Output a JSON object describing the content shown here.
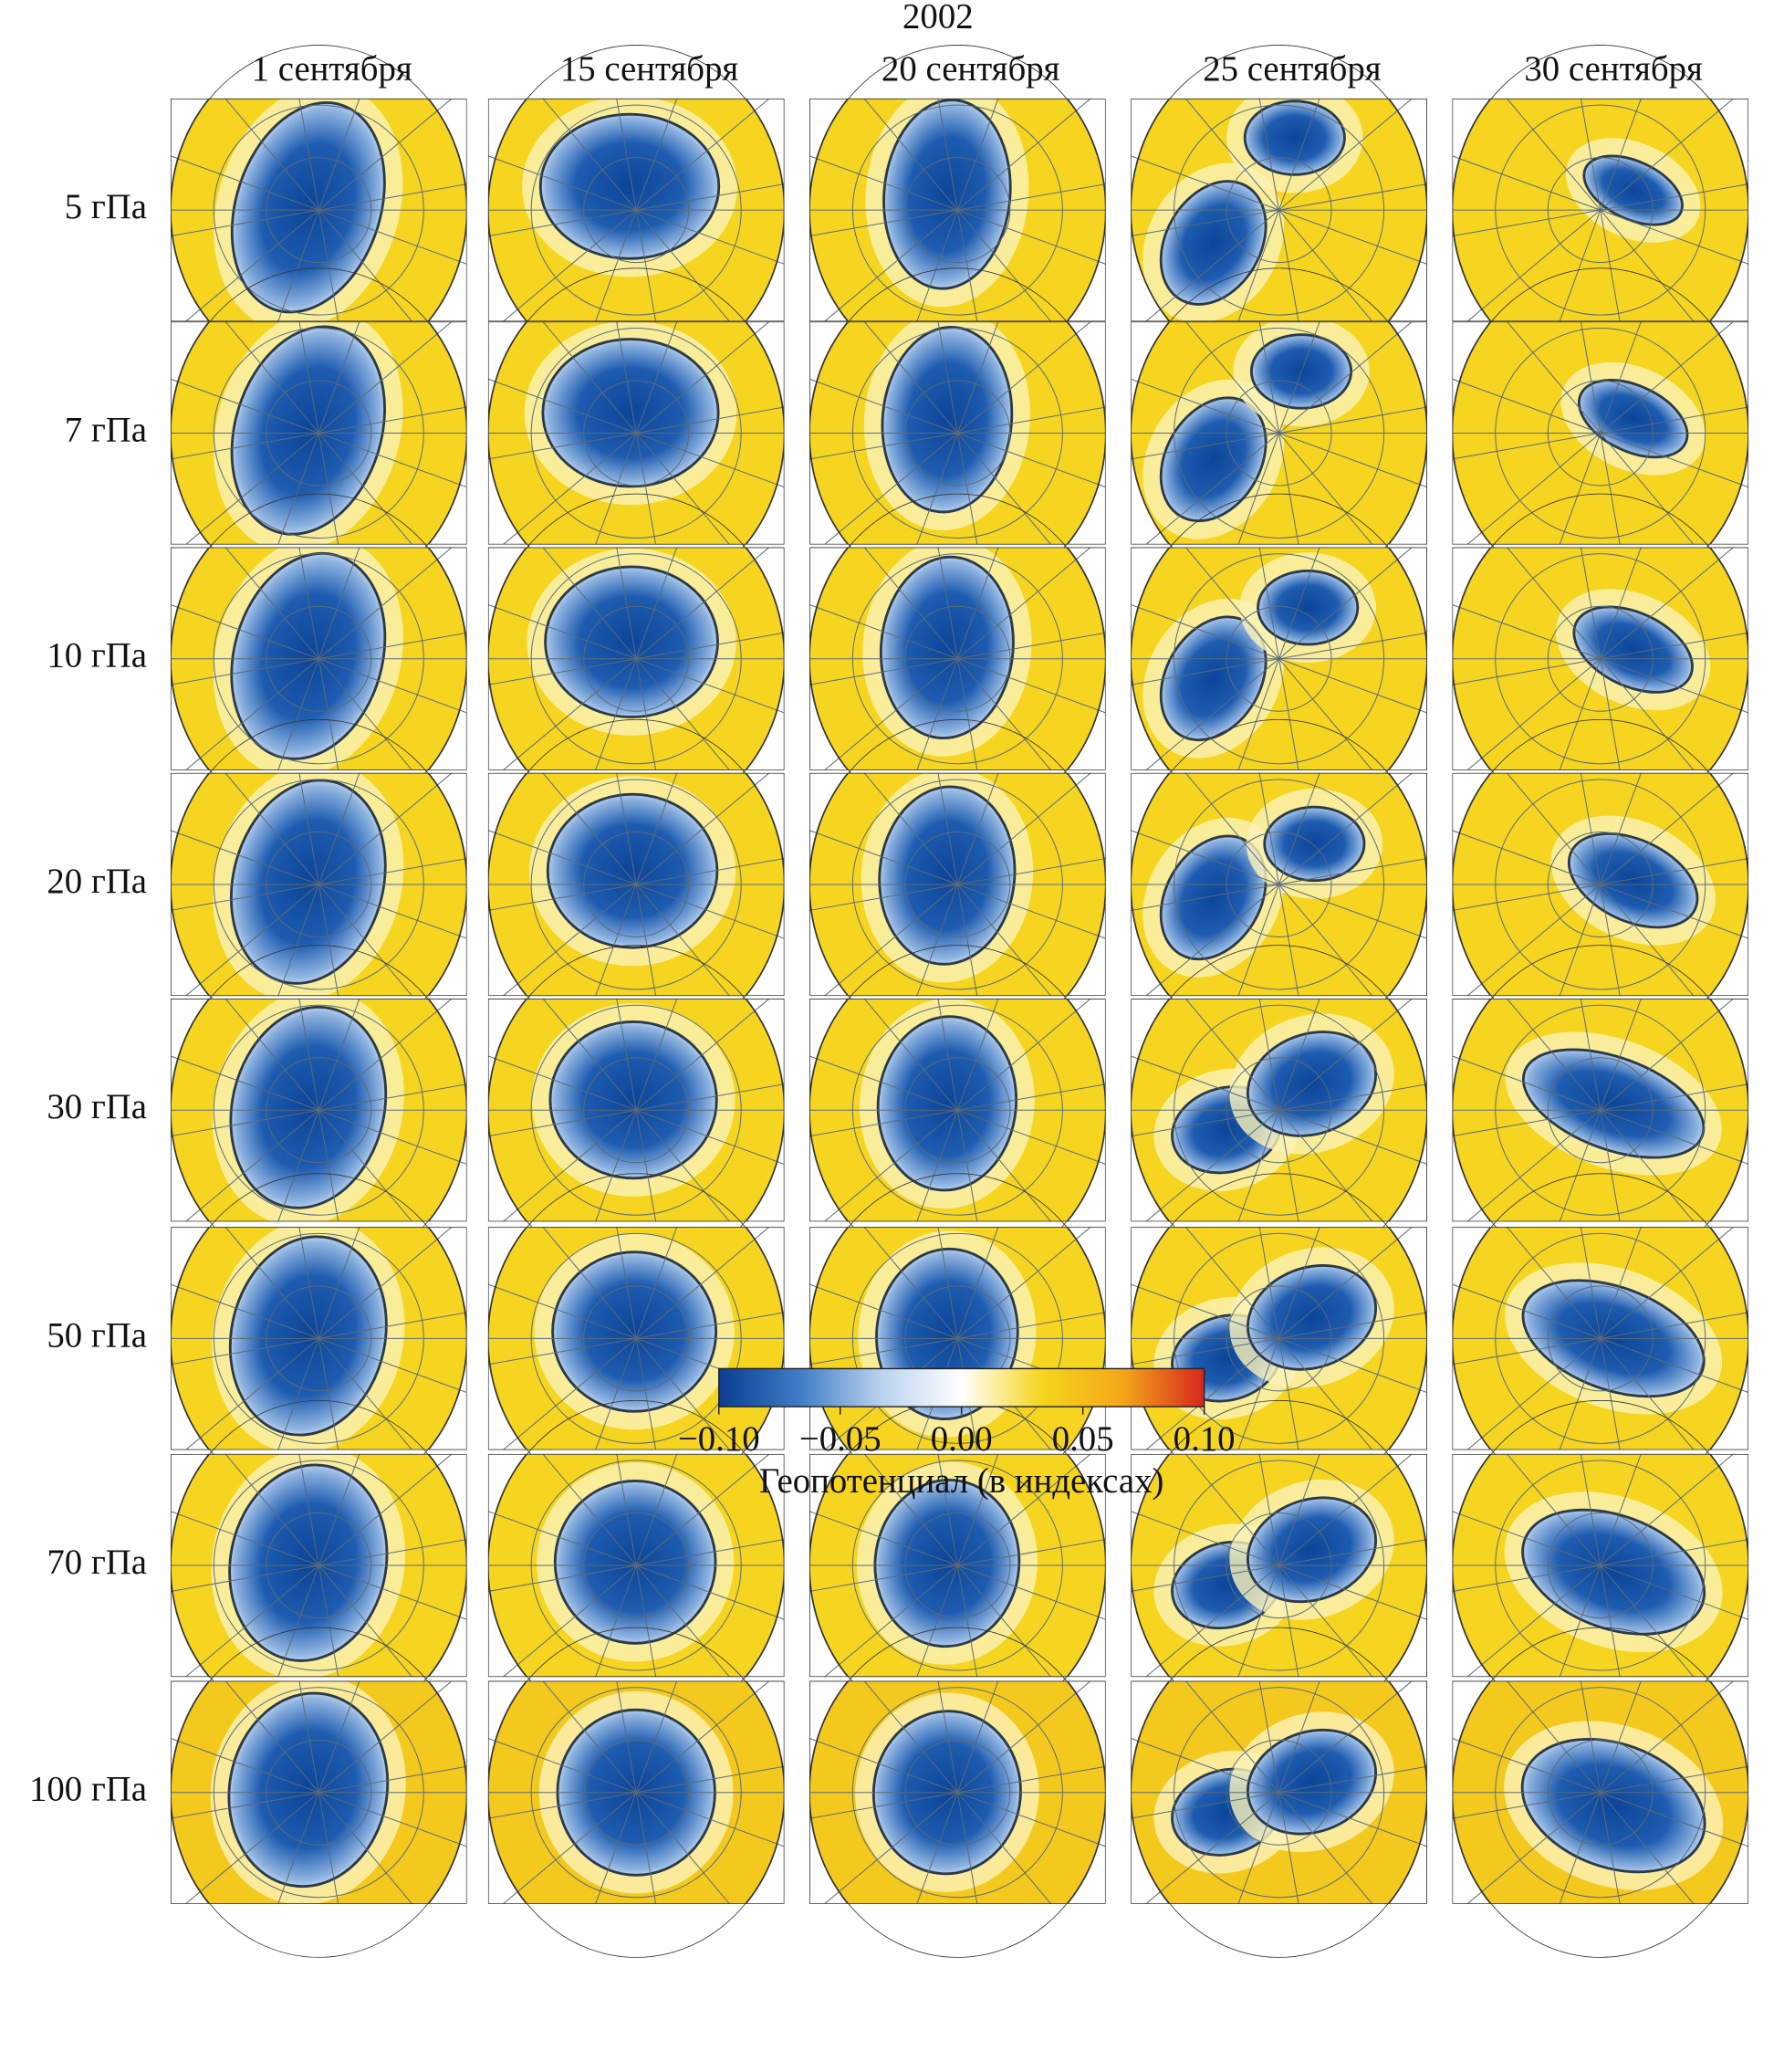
{
  "chart_data": {
    "type": "heatmap",
    "title": "2002",
    "columns": [
      "1 сентября",
      "15 сентября",
      "20 сентября",
      "25 сентября",
      "30 сентября"
    ],
    "rows": [
      "5 гПа",
      "7 гПа",
      "10 гПа",
      "20 гПа",
      "30 гПа",
      "50 гПа",
      "70 гПа",
      "100 гПа"
    ],
    "colorbar": {
      "label": "Геопотенциал (в индексах)",
      "lim": [
        -0.1,
        0.1
      ],
      "ticks": [
        {
          "value": -0.1,
          "label": "−0.10"
        },
        {
          "value": -0.05,
          "label": "−0.05"
        },
        {
          "value": 0,
          "label": "0.00"
        },
        {
          "value": 0.05,
          "label": "0.05"
        },
        {
          "value": 0.1,
          "label": "0.10"
        }
      ],
      "colormap": [
        "#0a3d91",
        "#3f7cc6",
        "#b9d2ee",
        "#ffffff",
        "#f6d51c",
        "#f3a61a",
        "#d8261c"
      ]
    }
  }
}
